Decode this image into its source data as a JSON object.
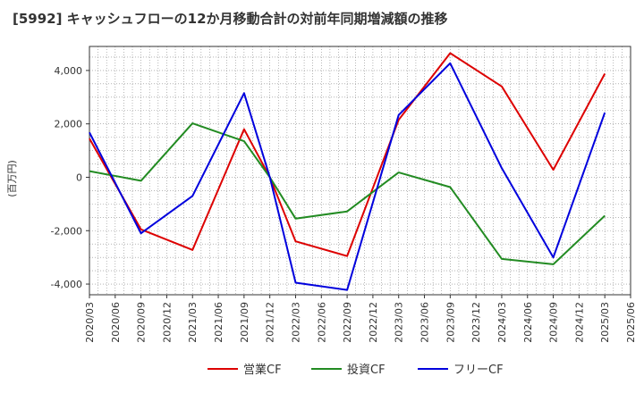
{
  "chart_data": {
    "type": "line",
    "title": "[5992]  キャッシュフローの12か月移動合計の対前年同期増減額の推移",
    "ylabel": "(百万円)",
    "xlabel": "",
    "ylim": [
      -4400,
      4900
    ],
    "yticks": [
      4000,
      2000,
      0,
      -2000,
      -4000
    ],
    "ytick_labels": [
      "4,000",
      "2,000",
      "0",
      "-2,000",
      "-4,000"
    ],
    "x_tick_labels": [
      "2020/03",
      "2020/06",
      "2020/09",
      "2020/12",
      "2021/03",
      "2021/06",
      "2021/09",
      "2021/12",
      "2022/03",
      "2022/06",
      "2022/09",
      "2022/12",
      "2023/03",
      "2023/06",
      "2023/09",
      "2023/12",
      "2024/03",
      "2024/06",
      "2024/09",
      "2024/12",
      "2025/03",
      "2025/06"
    ],
    "grid": true,
    "legend_position": "bottom",
    "series": [
      {
        "name": "営業CF",
        "color": "#dd0000",
        "x": [
          "2020/03",
          "2020/09",
          "2021/03",
          "2021/09",
          "2021/12",
          "2022/03",
          "2022/09",
          "2023/03",
          "2023/09",
          "2024/03",
          "2024/09",
          "2025/03"
        ],
        "values": [
          1450,
          -1950,
          -2720,
          1800,
          0,
          -2400,
          -2950,
          2150,
          4650,
          3400,
          280,
          3880
        ]
      },
      {
        "name": "投資CF",
        "color": "#228b22",
        "x": [
          "2020/03",
          "2020/09",
          "2021/03",
          "2021/09",
          "2021/12",
          "2022/03",
          "2022/09",
          "2023/03",
          "2023/09",
          "2024/03",
          "2024/09",
          "2025/03"
        ],
        "values": [
          230,
          -130,
          2020,
          1350,
          0,
          -1550,
          -1280,
          180,
          -370,
          -3060,
          -3260,
          -1440
        ]
      },
      {
        "name": "フリーCF",
        "color": "#0000dd",
        "x": [
          "2020/03",
          "2020/09",
          "2021/03",
          "2021/09",
          "2021/12",
          "2022/03",
          "2022/09",
          "2023/03",
          "2023/09",
          "2024/03",
          "2024/09",
          "2025/03"
        ],
        "values": [
          1680,
          -2100,
          -700,
          3150,
          0,
          -3950,
          -4220,
          2330,
          4270,
          340,
          -3000,
          2420
        ]
      }
    ]
  }
}
